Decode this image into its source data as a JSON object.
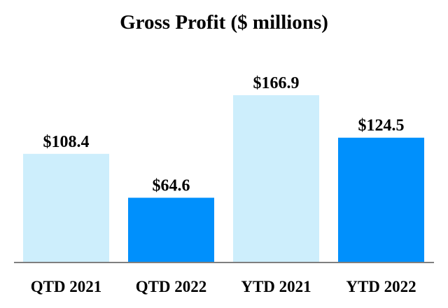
{
  "chart_data": {
    "type": "bar",
    "title": "Gross Profit ($ millions)",
    "xlabel": "",
    "ylabel": "",
    "categories": [
      "QTD 2021",
      "QTD 2022",
      "YTD 2021",
      "YTD 2022"
    ],
    "values": [
      108.4,
      64.6,
      166.9,
      124.5
    ],
    "value_labels": [
      "$108.4",
      "$64.6",
      "$166.9",
      "$124.5"
    ],
    "bar_colors": [
      "#cdeefc",
      "#0090fc",
      "#cdeefc",
      "#0090fc"
    ],
    "axis_color": "#7f7f7f",
    "ylim": [
      0,
      166.9
    ],
    "grid": false,
    "legend": "none"
  }
}
